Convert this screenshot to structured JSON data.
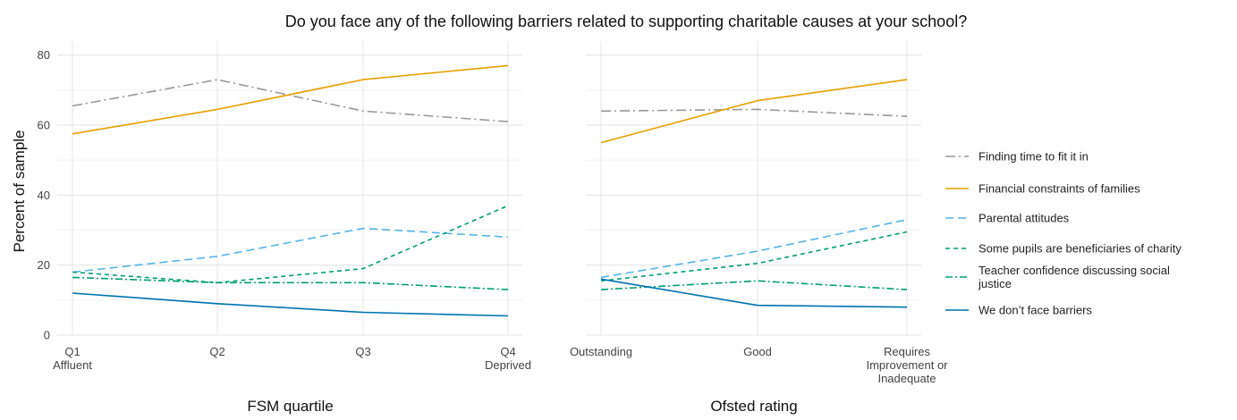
{
  "chart_data": {
    "type": "line",
    "title": "Do you face any of the following barriers related to supporting charitable causes at your school?",
    "ylabel": "Percent of sample",
    "ylim": [
      0,
      84
    ],
    "yticks": [
      0,
      20,
      40,
      60,
      80
    ],
    "grid": true,
    "legend_position": "right",
    "series_meta": [
      {
        "name": "Finding time to fit it in",
        "color": "#999999",
        "dash": "longdashdot"
      },
      {
        "name": "Financial constraints of families",
        "color": "#E69F00",
        "dash": "solid"
      },
      {
        "name": "Parental attitudes",
        "color": "#56B4E9",
        "dash": "longdash"
      },
      {
        "name": "Some pupils are beneficiaries of charity",
        "color": "#009E73",
        "dash": "dashed"
      },
      {
        "name": "Teacher confidence discussing social justice",
        "color": "#009E73",
        "dash": "dotdash"
      },
      {
        "name": "We don’t face barriers",
        "color": "#0072B2",
        "dash": "solid"
      }
    ],
    "legend_entries": [
      {
        "lines": [
          "Finding time to fit it in"
        ]
      },
      {
        "lines": [
          "Financial constraints of families"
        ]
      },
      {
        "lines": [
          "Parental attitudes"
        ]
      },
      {
        "lines": [
          "Some pupils are beneficiaries of charity"
        ]
      },
      {
        "lines": [
          "Teacher confidence discussing social",
          "justice"
        ]
      },
      {
        "lines": [
          "We don’t face barriers"
        ]
      }
    ],
    "panels": [
      {
        "xlabel": "FSM quartile",
        "categories": [
          {
            "lines": [
              "Q1",
              "Affluent"
            ]
          },
          {
            "lines": [
              "Q2"
            ]
          },
          {
            "lines": [
              "Q3"
            ]
          },
          {
            "lines": [
              "Q4",
              "Deprived"
            ]
          }
        ],
        "series": [
          {
            "name": "Finding time to fit it in",
            "values": [
              65.5,
              73,
              64,
              61
            ]
          },
          {
            "name": "Financial constraints of families",
            "values": [
              57.5,
              64.5,
              73,
              77
            ]
          },
          {
            "name": "Parental attitudes",
            "values": [
              18,
              22.5,
              30.5,
              28
            ]
          },
          {
            "name": "Some pupils are beneficiaries of charity",
            "values": [
              18,
              15,
              19,
              37
            ]
          },
          {
            "name": "Teacher confidence discussing social justice",
            "values": [
              16.5,
              15,
              15,
              13
            ]
          },
          {
            "name": "We don’t face barriers",
            "values": [
              12,
              9,
              6.5,
              5.5
            ]
          }
        ]
      },
      {
        "xlabel": "Ofsted rating",
        "categories": [
          {
            "lines": [
              "Outstanding"
            ]
          },
          {
            "lines": [
              "Good"
            ]
          },
          {
            "lines": [
              "Requires",
              "Improvement or",
              "Inadequate"
            ]
          }
        ],
        "series": [
          {
            "name": "Finding time to fit it in",
            "values": [
              64,
              64.5,
              62.5
            ]
          },
          {
            "name": "Financial constraints of families",
            "values": [
              55,
              67,
              73
            ]
          },
          {
            "name": "Parental attitudes",
            "values": [
              16.5,
              24,
              33
            ]
          },
          {
            "name": "Some pupils are beneficiaries of charity",
            "values": [
              15.5,
              20.5,
              29.5
            ]
          },
          {
            "name": "Teacher confidence discussing social justice",
            "values": [
              13,
              15.5,
              13
            ]
          },
          {
            "name": "We don’t face barriers",
            "values": [
              16,
              8.5,
              8
            ]
          }
        ]
      }
    ]
  }
}
